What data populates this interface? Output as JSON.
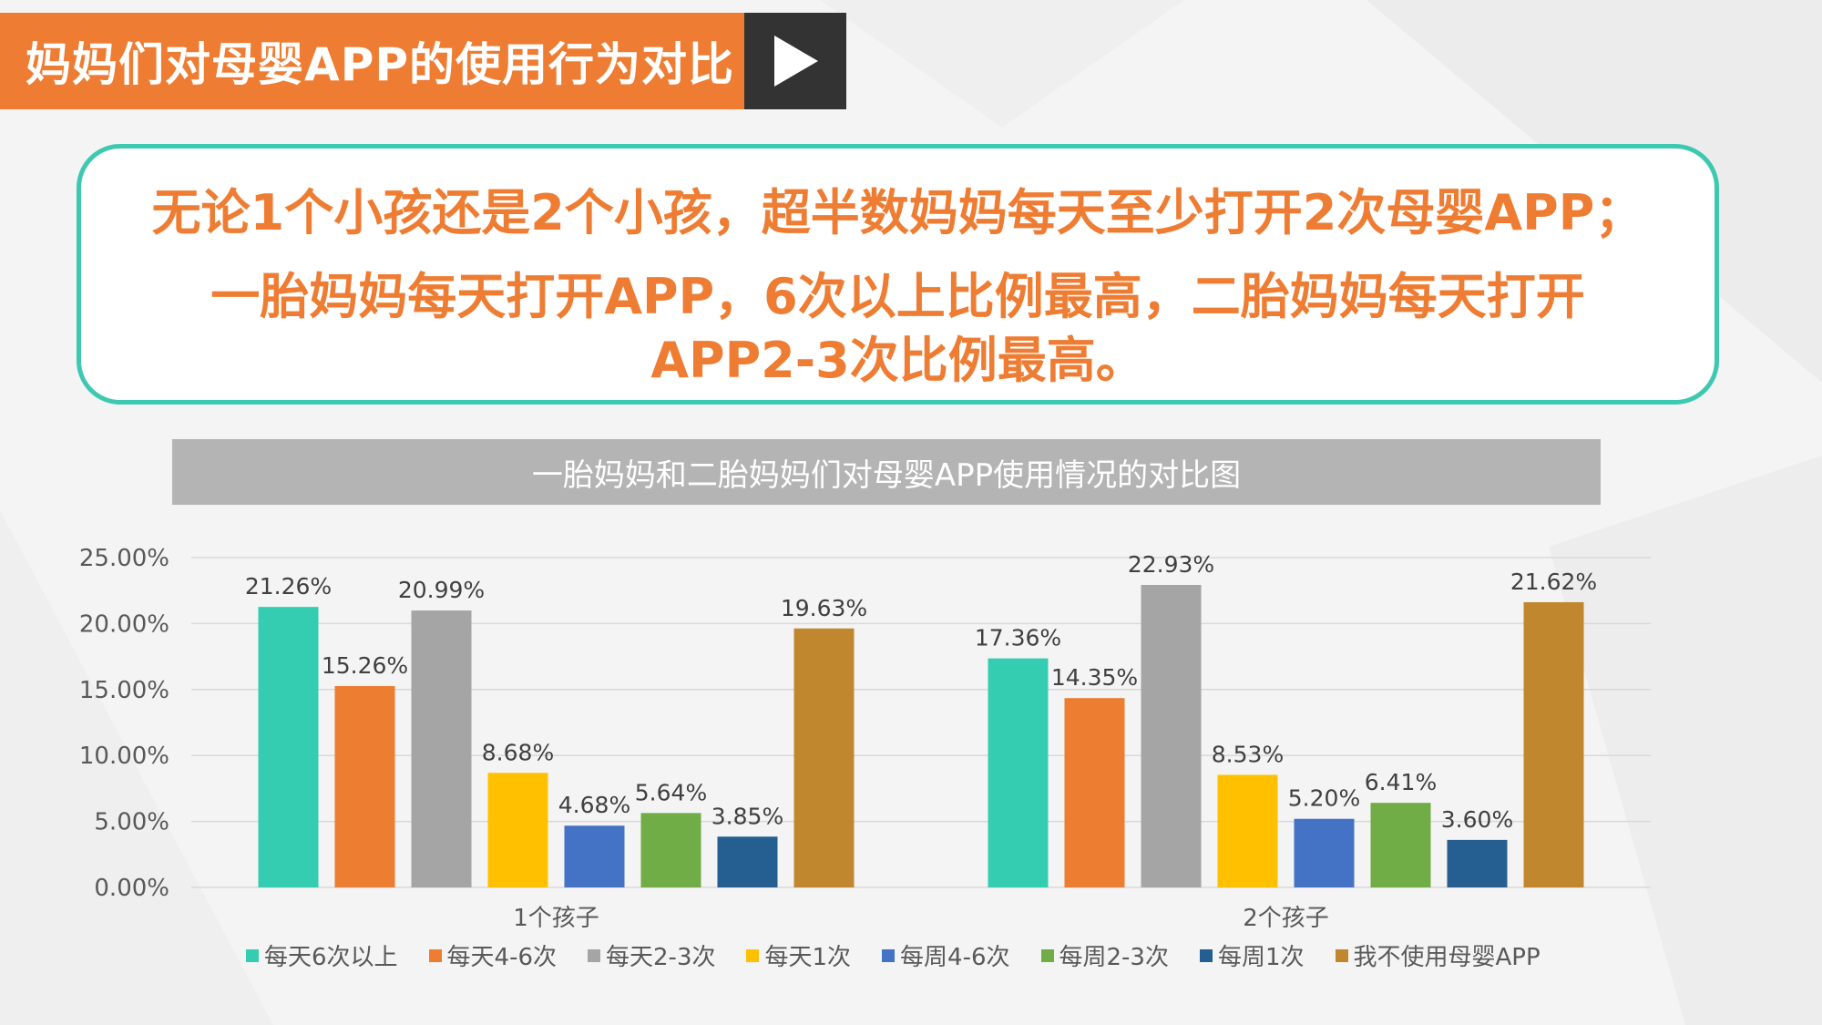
{
  "header": {
    "title": "妈妈们对母婴APP的使用行为对比"
  },
  "summary": {
    "line1": "无论1个小孩还是2个小孩，超半数妈妈每天至少打开2次母婴APP；",
    "line2": "一胎妈妈每天打开APP，6次以上比例最高，二胎妈妈每天打开",
    "line3": "APP2-3次比例最高。"
  },
  "colors": {
    "accent": "#ee7d33",
    "border_teal": "#3cc9b0",
    "dark_box": "#333333"
  },
  "chart_data": {
    "type": "bar",
    "title": "一胎妈妈和二胎妈妈们对母婴APP使用情况的对比图",
    "categories": [
      "1个孩子",
      "2个孩子"
    ],
    "ylim": [
      0,
      25
    ],
    "yticks": [
      "0.00%",
      "5.00%",
      "10.00%",
      "15.00%",
      "20.00%",
      "25.00%"
    ],
    "grid": true,
    "legend_position": "bottom",
    "series": [
      {
        "name": "每天6次以上",
        "color": "#35cdb1",
        "values": [
          21.26,
          17.36
        ],
        "labels": [
          "21.26%",
          "17.36%"
        ]
      },
      {
        "name": "每天4-6次",
        "color": "#ed7d31",
        "values": [
          15.26,
          14.35
        ],
        "labels": [
          "15.26%",
          "14.35%"
        ]
      },
      {
        "name": "每天2-3次",
        "color": "#a5a5a5",
        "values": [
          20.99,
          22.93
        ],
        "labels": [
          "20.99%",
          "22.93%"
        ]
      },
      {
        "name": "每天1次",
        "color": "#ffc000",
        "values": [
          8.68,
          8.53
        ],
        "labels": [
          "8.68%",
          "8.53%"
        ]
      },
      {
        "name": "每周4-6次",
        "color": "#4472c4",
        "values": [
          4.68,
          5.2
        ],
        "labels": [
          "4.68%",
          "5.20%"
        ]
      },
      {
        "name": "每周2-3次",
        "color": "#70ad47",
        "values": [
          5.64,
          6.41
        ],
        "labels": [
          "5.64%",
          "6.41%"
        ]
      },
      {
        "name": "每周1次",
        "color": "#255e91",
        "values": [
          3.85,
          3.6
        ],
        "labels": [
          "3.85%",
          "3.60%"
        ]
      },
      {
        "name": "我不使用母婴APP",
        "color": "#c0872f",
        "values": [
          19.63,
          21.62
        ],
        "labels": [
          "19.63%",
          "21.62%"
        ]
      }
    ]
  }
}
